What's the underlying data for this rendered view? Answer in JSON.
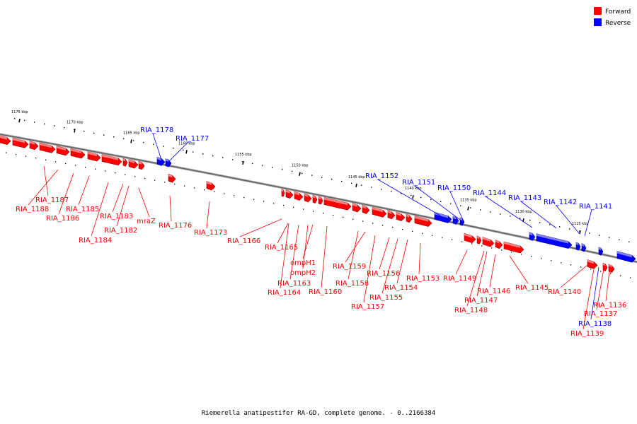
{
  "caption": "Riemerella anatipestifer RA-GD, complete genome. - 0..2166384",
  "colors": {
    "forward": "#ff0000",
    "reverse": "#0000ff",
    "axis": "#808080"
  },
  "legend": [
    {
      "label": "Forward",
      "color": "#ff0000"
    },
    {
      "label": "Reverse",
      "color": "#0000ff"
    }
  ],
  "ticks": [
    "1175 kbp",
    "1170 kbp",
    "1165 kbp",
    "1160 kbp",
    "1155 kbp",
    "1150 kbp",
    "1145 kbp",
    "1140 kbp",
    "1135 kbp",
    "1130 kbp",
    "1125 kbp"
  ],
  "labels": [
    {
      "text": "RIA_1178",
      "strand": "reverse"
    },
    {
      "text": "RIA_1177",
      "strand": "reverse"
    },
    {
      "text": "RIA_1187",
      "strand": "forward"
    },
    {
      "text": "RIA_1188",
      "strand": "forward"
    },
    {
      "text": "RIA_1186",
      "strand": "forward"
    },
    {
      "text": "RIA_1185",
      "strand": "forward"
    },
    {
      "text": "RIA_1184",
      "strand": "forward"
    },
    {
      "text": "RIA_1183",
      "strand": "forward"
    },
    {
      "text": "RIA_1182",
      "strand": "forward"
    },
    {
      "text": "mraZ",
      "strand": "forward"
    },
    {
      "text": "RIA_1176",
      "strand": "forward"
    },
    {
      "text": "RIA_1173",
      "strand": "forward"
    },
    {
      "text": "RIA_1166",
      "strand": "forward"
    },
    {
      "text": "RIA_1165",
      "strand": "forward"
    },
    {
      "text": "ompH1",
      "strand": "forward"
    },
    {
      "text": "ompH2",
      "strand": "forward"
    },
    {
      "text": "RIA_1163",
      "strand": "forward"
    },
    {
      "text": "RIA_1164",
      "strand": "forward"
    },
    {
      "text": "RIA_1160",
      "strand": "forward"
    },
    {
      "text": "RIA_1159",
      "strand": "forward"
    },
    {
      "text": "RIA_1158",
      "strand": "forward"
    },
    {
      "text": "RIA_1157",
      "strand": "forward"
    },
    {
      "text": "RIA_1156",
      "strand": "forward"
    },
    {
      "text": "RIA_1155",
      "strand": "forward"
    },
    {
      "text": "RIA_1154",
      "strand": "forward"
    },
    {
      "text": "RIA_1153",
      "strand": "forward"
    },
    {
      "text": "RIA_1152",
      "strand": "reverse"
    },
    {
      "text": "RIA_1151",
      "strand": "reverse"
    },
    {
      "text": "RIA_1150",
      "strand": "reverse"
    },
    {
      "text": "RIA_1144",
      "strand": "reverse"
    },
    {
      "text": "RIA_1143",
      "strand": "reverse"
    },
    {
      "text": "RIA_1142",
      "strand": "reverse"
    },
    {
      "text": "RIA_1141",
      "strand": "reverse"
    },
    {
      "text": "RIA_1149",
      "strand": "forward"
    },
    {
      "text": "RIA_1146",
      "strand": "forward"
    },
    {
      "text": "RIA_1147",
      "strand": "forward"
    },
    {
      "text": "RIA_1148",
      "strand": "forward"
    },
    {
      "text": "RIA_1145",
      "strand": "forward"
    },
    {
      "text": "RIA_1140",
      "strand": "forward"
    },
    {
      "text": "RIA_1136",
      "strand": "forward"
    },
    {
      "text": "RIA_1137",
      "strand": "forward"
    },
    {
      "text": "RIA_1138",
      "strand": "reverse"
    },
    {
      "text": "RIA_1139",
      "strand": "forward"
    }
  ]
}
